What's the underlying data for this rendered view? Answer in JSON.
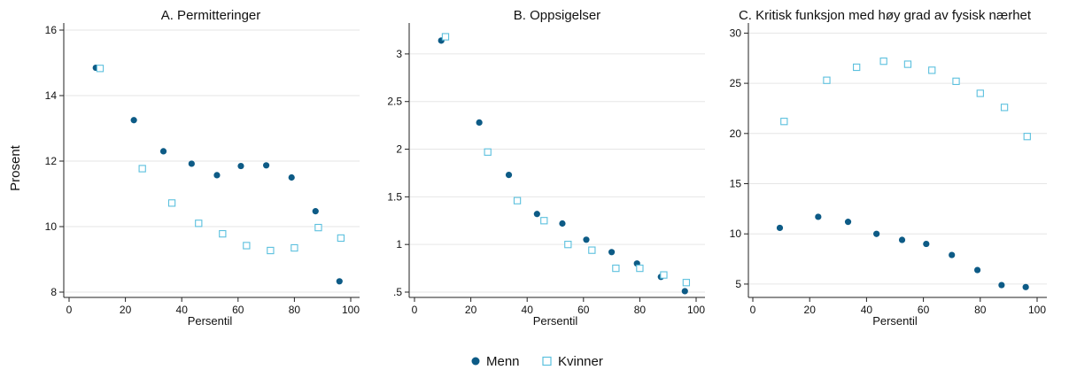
{
  "figure": {
    "ylabel": "Prosent",
    "colors": {
      "menn": "#0d5b86",
      "kvinner": "#5bc0de"
    },
    "legend": {
      "placement": "bottom-center",
      "items": [
        {
          "name": "Menn",
          "marker": "filled-circle"
        },
        {
          "name": "Kvinner",
          "marker": "hollow-square"
        }
      ]
    }
  },
  "chart_data": [
    {
      "type": "scatter",
      "title": "A. Permitteringer",
      "xlabel": "Persentil",
      "ylabel": "Prosent",
      "xlim": [
        0,
        100
      ],
      "ylim": [
        8,
        16
      ],
      "xticks": [
        0,
        20,
        40,
        60,
        80,
        100
      ],
      "yticks": [
        8,
        10,
        12,
        14,
        16
      ],
      "ytick_labels": [
        "8",
        "10",
        "12",
        "14",
        "16"
      ],
      "grid": "horizontal",
      "series": [
        {
          "name": "Menn",
          "marker": "filled-circle",
          "x": [
            9.5,
            23,
            33.5,
            43.5,
            52.5,
            61,
            70,
            79,
            87.5,
            96
          ],
          "y": [
            14.85,
            13.25,
            12.3,
            11.92,
            11.57,
            11.85,
            11.87,
            11.5,
            10.47,
            8.33
          ]
        },
        {
          "name": "Kvinner",
          "marker": "hollow-square",
          "x": [
            11,
            26,
            36.5,
            46,
            54.5,
            63,
            71.5,
            80,
            88.5,
            96.5
          ],
          "y": [
            14.83,
            11.77,
            10.72,
            10.1,
            9.78,
            9.42,
            9.27,
            9.35,
            9.97,
            9.65
          ]
        }
      ]
    },
    {
      "type": "scatter",
      "title": "B. Oppsigelser",
      "xlabel": "Persentil",
      "ylabel": "",
      "xlim": [
        0,
        100
      ],
      "ylim": [
        0.5,
        3.25
      ],
      "xticks": [
        0,
        20,
        40,
        60,
        80,
        100
      ],
      "yticks": [
        0.5,
        1,
        1.5,
        2,
        2.5,
        3
      ],
      "ytick_labels": [
        ".5",
        "1",
        "1.5",
        "2",
        "2.5",
        "3"
      ],
      "grid": "horizontal",
      "series": [
        {
          "name": "Menn",
          "marker": "filled-circle",
          "x": [
            9.5,
            23,
            33.5,
            43.5,
            52.5,
            61,
            70,
            79,
            87.5,
            96
          ],
          "y": [
            3.14,
            2.28,
            1.73,
            1.32,
            1.22,
            1.05,
            0.92,
            0.8,
            0.66,
            0.51
          ]
        },
        {
          "name": "Kvinner",
          "marker": "hollow-square",
          "x": [
            11,
            26,
            36.5,
            46,
            54.5,
            63,
            71.5,
            80,
            88.5,
            96.5
          ],
          "y": [
            3.18,
            1.97,
            1.46,
            1.25,
            1.0,
            0.94,
            0.75,
            0.75,
            0.68,
            0.6
          ]
        }
      ]
    },
    {
      "type": "scatter",
      "title": "C. Kritisk funksjon med høy grad av fysisk nærhet",
      "xlabel": "Persentil",
      "ylabel": "",
      "xlim": [
        0,
        100
      ],
      "ylim": [
        4.2,
        30.3
      ],
      "xticks": [
        0,
        20,
        40,
        60,
        80,
        100
      ],
      "yticks": [
        5,
        10,
        15,
        20,
        25,
        30
      ],
      "ytick_labels": [
        "5",
        "10",
        "15",
        "20",
        "25",
        "30"
      ],
      "grid": "horizontal",
      "series": [
        {
          "name": "Menn",
          "marker": "filled-circle",
          "x": [
            9.5,
            23,
            33.5,
            43.5,
            52.5,
            61,
            70,
            79,
            87.5,
            96
          ],
          "y": [
            10.6,
            11.7,
            11.2,
            10.0,
            9.4,
            9.0,
            7.9,
            6.4,
            4.9,
            4.7
          ]
        },
        {
          "name": "Kvinner",
          "marker": "hollow-square",
          "x": [
            11,
            26,
            36.5,
            46,
            54.5,
            63,
            71.5,
            80,
            88.5,
            96.5
          ],
          "y": [
            21.2,
            25.3,
            26.6,
            27.2,
            26.9,
            26.3,
            25.2,
            24.0,
            22.6,
            19.7
          ]
        }
      ]
    }
  ]
}
